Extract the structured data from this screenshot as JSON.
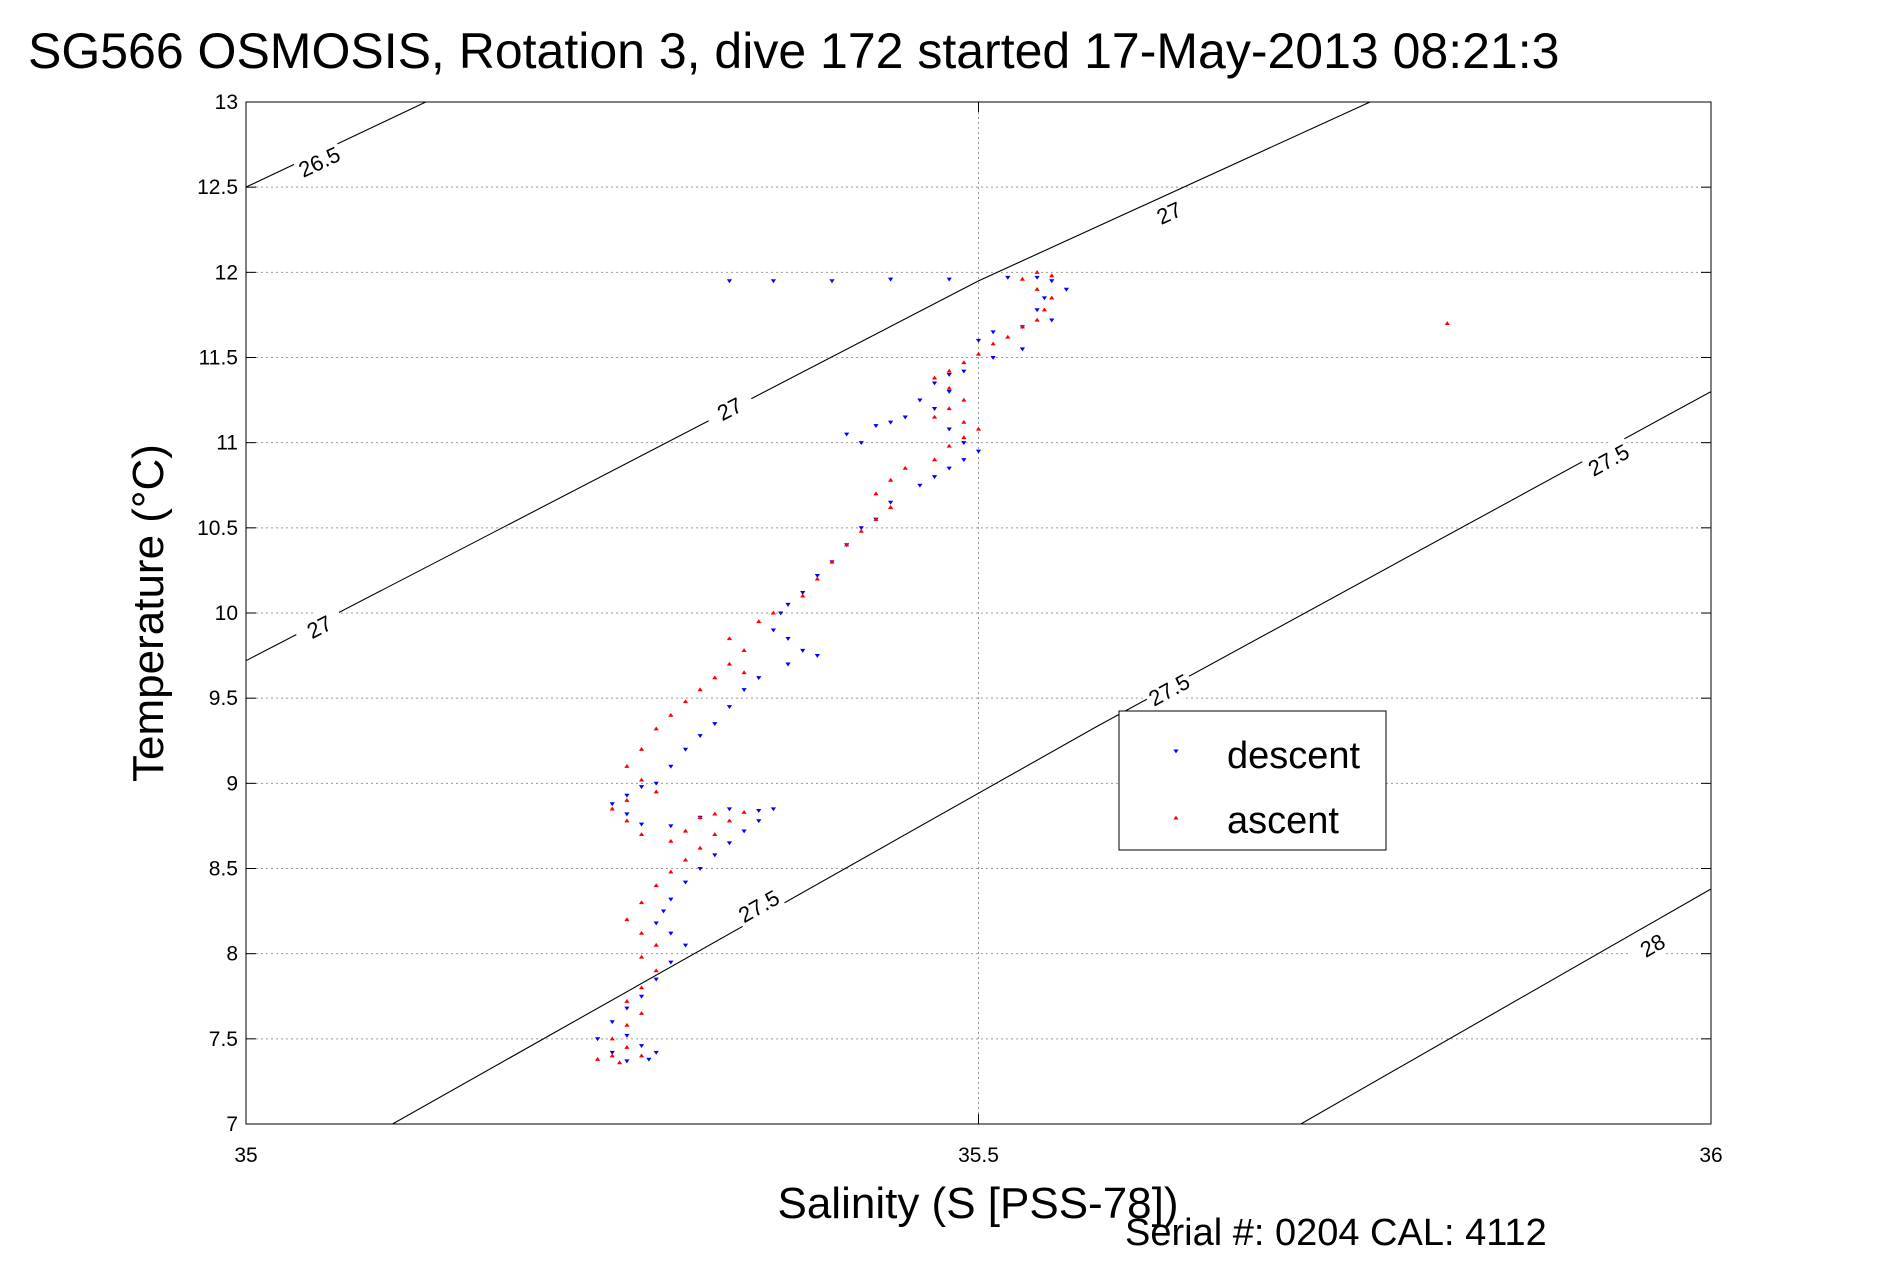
{
  "chart_data": {
    "type": "scatter",
    "title": "SG566 OSMOSIS, Rotation 3, dive 172 started 17-May-2013 08:21:3",
    "xlabel": "Salinity (S [PSS-78])",
    "ylabel": "Temperature (°C)",
    "xlim": [
      35,
      36
    ],
    "ylim": [
      7,
      13
    ],
    "grid": true,
    "legend_position": "center-right",
    "x_ticks": [
      "35",
      "35.5",
      "36"
    ],
    "y_ticks": [
      "7",
      "7.5",
      "8",
      "8.5",
      "9",
      "9.5",
      "10",
      "10.5",
      "11",
      "11.5",
      "12",
      "12.5",
      "13"
    ],
    "density_contours": [
      {
        "label": "26.5",
        "points": [
          [
            35.0,
            12.5
          ],
          [
            35.135,
            13.05
          ]
        ],
        "labels_at": [
          [
            35.05,
            12.65
          ]
        ]
      },
      {
        "label": "27",
        "points": [
          [
            35.0,
            9.72
          ],
          [
            35.5,
            11.95
          ],
          [
            35.78,
            13.05
          ]
        ],
        "labels_at": [
          [
            35.05,
            9.92
          ],
          [
            35.33,
            11.2
          ],
          [
            35.63,
            12.35
          ]
        ]
      },
      {
        "label": "27.5",
        "points": [
          [
            35.1,
            7.0
          ],
          [
            35.58,
            9.33
          ],
          [
            36.0,
            11.3
          ]
        ],
        "labels_at": [
          [
            35.35,
            8.28
          ],
          [
            35.63,
            9.55
          ],
          [
            35.93,
            10.9
          ]
        ]
      },
      {
        "label": "28",
        "points": [
          [
            35.72,
            7.0
          ],
          [
            36.0,
            8.38
          ]
        ],
        "labels_at": [
          [
            35.96,
            8.05
          ]
        ]
      }
    ],
    "series": [
      {
        "name": "descent",
        "color": "#0000ff",
        "marker": "triangle-down",
        "points": [
          [
            35.33,
            11.95
          ],
          [
            35.36,
            11.95
          ],
          [
            35.4,
            11.95
          ],
          [
            35.44,
            11.96
          ],
          [
            35.48,
            11.96
          ],
          [
            35.52,
            11.97
          ],
          [
            35.54,
            11.97
          ],
          [
            35.55,
            11.95
          ],
          [
            35.56,
            11.9
          ],
          [
            35.545,
            11.85
          ],
          [
            35.54,
            11.78
          ],
          [
            35.55,
            11.72
          ],
          [
            35.53,
            11.68
          ],
          [
            35.51,
            11.65
          ],
          [
            35.5,
            11.6
          ],
          [
            35.53,
            11.55
          ],
          [
            35.51,
            11.5
          ],
          [
            35.49,
            11.42
          ],
          [
            35.48,
            11.4
          ],
          [
            35.47,
            11.35
          ],
          [
            35.48,
            11.3
          ],
          [
            35.46,
            11.25
          ],
          [
            35.47,
            11.2
          ],
          [
            35.45,
            11.15
          ],
          [
            35.43,
            11.1
          ],
          [
            35.41,
            11.05
          ],
          [
            35.42,
            11.0
          ],
          [
            35.44,
            11.12
          ],
          [
            35.48,
            11.08
          ],
          [
            35.49,
            11.0
          ],
          [
            35.5,
            10.95
          ],
          [
            35.49,
            10.9
          ],
          [
            35.48,
            10.85
          ],
          [
            35.47,
            10.8
          ],
          [
            35.46,
            10.75
          ],
          [
            35.44,
            10.65
          ],
          [
            35.43,
            10.55
          ],
          [
            35.42,
            10.5
          ],
          [
            35.41,
            10.4
          ],
          [
            35.4,
            10.3
          ],
          [
            35.39,
            10.22
          ],
          [
            35.38,
            10.12
          ],
          [
            35.37,
            10.05
          ],
          [
            35.365,
            10.0
          ],
          [
            35.36,
            9.9
          ],
          [
            35.37,
            9.85
          ],
          [
            35.38,
            9.78
          ],
          [
            35.39,
            9.75
          ],
          [
            35.37,
            9.7
          ],
          [
            35.35,
            9.62
          ],
          [
            35.34,
            9.55
          ],
          [
            35.33,
            9.45
          ],
          [
            35.32,
            9.35
          ],
          [
            35.31,
            9.28
          ],
          [
            35.3,
            9.2
          ],
          [
            35.29,
            9.1
          ],
          [
            35.28,
            9.0
          ],
          [
            35.27,
            8.98
          ],
          [
            35.26,
            8.93
          ],
          [
            35.25,
            8.88
          ],
          [
            35.26,
            8.82
          ],
          [
            35.27,
            8.76
          ],
          [
            35.29,
            8.75
          ],
          [
            35.31,
            8.8
          ],
          [
            35.33,
            8.85
          ],
          [
            35.35,
            8.84
          ],
          [
            35.36,
            8.85
          ],
          [
            35.35,
            8.78
          ],
          [
            35.34,
            8.72
          ],
          [
            35.33,
            8.65
          ],
          [
            35.32,
            8.58
          ],
          [
            35.31,
            8.5
          ],
          [
            35.3,
            8.42
          ],
          [
            35.29,
            8.32
          ],
          [
            35.285,
            8.25
          ],
          [
            35.28,
            8.18
          ],
          [
            35.29,
            8.12
          ],
          [
            35.3,
            8.05
          ],
          [
            35.29,
            7.95
          ],
          [
            35.28,
            7.85
          ],
          [
            35.27,
            7.75
          ],
          [
            35.26,
            7.68
          ],
          [
            35.25,
            7.6
          ],
          [
            35.26,
            7.52
          ],
          [
            35.27,
            7.46
          ],
          [
            35.28,
            7.42
          ],
          [
            35.275,
            7.38
          ],
          [
            35.26,
            7.37
          ],
          [
            35.25,
            7.42
          ],
          [
            35.24,
            7.5
          ]
        ]
      },
      {
        "name": "ascent",
        "color": "#ff0000",
        "marker": "triangle-up",
        "points": [
          [
            35.82,
            11.7
          ],
          [
            35.55,
            11.98
          ],
          [
            35.54,
            12.0
          ],
          [
            35.53,
            11.96
          ],
          [
            35.54,
            11.9
          ],
          [
            35.55,
            11.85
          ],
          [
            35.545,
            11.78
          ],
          [
            35.54,
            11.72
          ],
          [
            35.53,
            11.68
          ],
          [
            35.52,
            11.62
          ],
          [
            35.51,
            11.58
          ],
          [
            35.5,
            11.52
          ],
          [
            35.49,
            11.47
          ],
          [
            35.48,
            11.42
          ],
          [
            35.47,
            11.38
          ],
          [
            35.48,
            11.32
          ],
          [
            35.49,
            11.25
          ],
          [
            35.48,
            11.2
          ],
          [
            35.47,
            11.15
          ],
          [
            35.49,
            11.12
          ],
          [
            35.5,
            11.08
          ],
          [
            35.49,
            11.03
          ],
          [
            35.48,
            10.98
          ],
          [
            35.47,
            10.9
          ],
          [
            35.45,
            10.85
          ],
          [
            35.44,
            10.78
          ],
          [
            35.43,
            10.7
          ],
          [
            35.44,
            10.62
          ],
          [
            35.43,
            10.55
          ],
          [
            35.42,
            10.48
          ],
          [
            35.41,
            10.4
          ],
          [
            35.4,
            10.3
          ],
          [
            35.39,
            10.2
          ],
          [
            35.38,
            10.1
          ],
          [
            35.36,
            10.0
          ],
          [
            35.35,
            9.95
          ],
          [
            35.33,
            9.85
          ],
          [
            35.34,
            9.78
          ],
          [
            35.33,
            9.7
          ],
          [
            35.34,
            9.65
          ],
          [
            35.32,
            9.62
          ],
          [
            35.31,
            9.55
          ],
          [
            35.3,
            9.48
          ],
          [
            35.29,
            9.4
          ],
          [
            35.28,
            9.32
          ],
          [
            35.27,
            9.2
          ],
          [
            35.26,
            9.1
          ],
          [
            35.27,
            9.02
          ],
          [
            35.28,
            8.95
          ],
          [
            35.26,
            8.9
          ],
          [
            35.25,
            8.85
          ],
          [
            35.26,
            8.78
          ],
          [
            35.27,
            8.7
          ],
          [
            35.29,
            8.66
          ],
          [
            35.3,
            8.72
          ],
          [
            35.31,
            8.8
          ],
          [
            35.32,
            8.82
          ],
          [
            35.34,
            8.83
          ],
          [
            35.33,
            8.78
          ],
          [
            35.32,
            8.7
          ],
          [
            35.31,
            8.62
          ],
          [
            35.3,
            8.55
          ],
          [
            35.29,
            8.48
          ],
          [
            35.28,
            8.4
          ],
          [
            35.27,
            8.3
          ],
          [
            35.26,
            8.2
          ],
          [
            35.27,
            8.12
          ],
          [
            35.28,
            8.05
          ],
          [
            35.27,
            7.98
          ],
          [
            35.28,
            7.9
          ],
          [
            35.27,
            7.8
          ],
          [
            35.26,
            7.72
          ],
          [
            35.27,
            7.65
          ],
          [
            35.26,
            7.58
          ],
          [
            35.25,
            7.5
          ],
          [
            35.26,
            7.45
          ],
          [
            35.25,
            7.4
          ],
          [
            35.24,
            7.38
          ],
          [
            35.255,
            7.36
          ],
          [
            35.27,
            7.4
          ]
        ]
      }
    ],
    "footer": "Serial #: 0204  CAL: 4112"
  }
}
